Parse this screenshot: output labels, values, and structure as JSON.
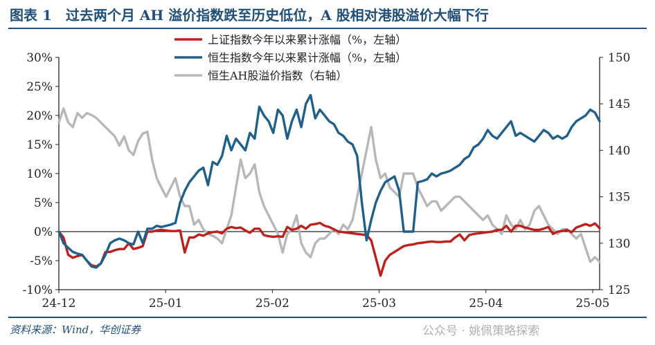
{
  "title": "图表 1　过去两个月 AH 溢价指数跌至历史低位，A 股相对港股溢价大幅下行",
  "source": "资料来源：Wind，华创证券",
  "watermark": "公众号 · 姚佩策略探索",
  "colors": {
    "title": "#1f4e79",
    "shanghai": "#c0201c",
    "hangseng": "#1f5f8b",
    "ah_premium": "#b7b7b7"
  },
  "chart_data": {
    "type": "line",
    "x_ticks": [
      "24-12",
      "25-01",
      "25-02",
      "25-03",
      "25-04",
      "25-05"
    ],
    "x": [
      0,
      1,
      2,
      3,
      4,
      5,
      6,
      7,
      8,
      9,
      10,
      11,
      12,
      13,
      14,
      15,
      16,
      17,
      18,
      19,
      20,
      21,
      22,
      23,
      24,
      25,
      26,
      27,
      28,
      29,
      30,
      31,
      32,
      33,
      34,
      35,
      36,
      37,
      38,
      39,
      40,
      41,
      42,
      43,
      44,
      45,
      46,
      47,
      48,
      49,
      50,
      51,
      52,
      53,
      54,
      55,
      56,
      57,
      58,
      59,
      60,
      61,
      62,
      63,
      64,
      65,
      66,
      67,
      68,
      69,
      70,
      71,
      72,
      73,
      74,
      75,
      76,
      77,
      78,
      79,
      80,
      81,
      82,
      83,
      84,
      85,
      86,
      87,
      88,
      89,
      90,
      91,
      92,
      93,
      94,
      95,
      96,
      97,
      98,
      99,
      100,
      101,
      102,
      103,
      104,
      105,
      106,
      107,
      108,
      109,
      110,
      111,
      112,
      113,
      114,
      115,
      116
    ],
    "left_axis": {
      "ylim": [
        -10,
        30
      ],
      "ticks": [
        "-10%",
        "-5%",
        "0%",
        "5%",
        "10%",
        "15%",
        "20%",
        "25%",
        "30%"
      ]
    },
    "right_axis": {
      "ylim": [
        125,
        150
      ],
      "ticks": [
        "125",
        "130",
        "135",
        "140",
        "145",
        "150"
      ]
    },
    "series": [
      {
        "name": "上证指数今年以来累计涨幅（%，左轴）",
        "axis": "left",
        "values": [
          0.0,
          -1.0,
          -4.0,
          -4.5,
          -4.2,
          -4.0,
          -5.0,
          -5.8,
          -6.0,
          -5.5,
          -3.5,
          -3.5,
          -3.2,
          -3.0,
          -3.0,
          -2.0,
          -3.0,
          -2.8,
          -2.5,
          0.0,
          0.0,
          0.2,
          0.3,
          0.2,
          0.1,
          0.1,
          0.2,
          -3.6,
          -1.0,
          -1.0,
          -0.5,
          -0.7,
          -0.3,
          -0.1,
          0.0,
          -0.3,
          0.5,
          0.8,
          0.6,
          0.7,
          0.2,
          -0.2,
          0.5,
          0.5,
          -0.6,
          -0.8,
          -0.9,
          -0.8,
          -0.9,
          0.8,
          0.3,
          0.5,
          1.0,
          0.5,
          1.2,
          1.3,
          1.5,
          1.0,
          0.8,
          0.4,
          0.0,
          -0.1,
          -0.2,
          -0.3,
          -0.4,
          -0.5,
          -0.6,
          -1.5,
          -4.5,
          -7.6,
          -5.0,
          -4.0,
          -3.5,
          -3.0,
          -2.5,
          -2.3,
          -2.2,
          -2.0,
          -1.9,
          -1.8,
          -1.7,
          -1.8,
          -1.8,
          -1.7,
          -1.7,
          -1.0,
          -0.5,
          -1.5,
          -0.6,
          -0.4,
          -0.3,
          -0.2,
          -0.1,
          0.0,
          0.3,
          0.3,
          1.0,
          0.0,
          1.0,
          1.0,
          0.7,
          0.5,
          0.3,
          0.3,
          0.5,
          0.8,
          -0.4,
          0.0,
          0.1,
          0.3,
          -0.1,
          0.7,
          1.0,
          1.3,
          1.0,
          1.4,
          0.6
        ]
      },
      {
        "name": "恒生指数今年以来累计涨幅（%，左轴）",
        "axis": "left",
        "values": [
          0.0,
          -2.0,
          -2.8,
          -3.5,
          -3.8,
          -4.0,
          -5.0,
          -6.0,
          -6.2,
          -5.5,
          -4.0,
          -2.0,
          -1.5,
          -1.2,
          -1.5,
          -2.0,
          -2.2,
          0.0,
          -2.0,
          0.5,
          0.5,
          1.0,
          0.8,
          1.0,
          1.2,
          1.5,
          5.0,
          7.0,
          8.5,
          9.5,
          10.5,
          11.0,
          8.0,
          12.0,
          11.5,
          13.0,
          16.5,
          14.0,
          16.0,
          15.0,
          14.0,
          17.0,
          16.0,
          21.5,
          20.0,
          19.0,
          17.0,
          21.0,
          20.0,
          16.0,
          19.0,
          21.0,
          18.0,
          22.0,
          23.5,
          19.5,
          21.0,
          20.0,
          19.0,
          18.5,
          17.0,
          16.5,
          15.5,
          15.0,
          13.0,
          5.0,
          -1.5,
          2.0,
          5.0,
          7.0,
          8.5,
          9.0,
          9.5,
          7.0,
          0.0,
          0.0,
          0.0,
          8.5,
          8.7,
          9.0,
          10.0,
          9.5,
          10.0,
          10.2,
          10.5,
          11.0,
          11.5,
          12.5,
          13.0,
          14.5,
          15.0,
          16.0,
          17.5,
          16.5,
          16.0,
          17.0,
          18.0,
          19.0,
          16.5,
          17.0,
          16.5,
          16.0,
          15.5,
          16.5,
          17.5,
          17.0,
          16.0,
          16.5,
          16.0,
          16.5,
          18.0,
          19.0,
          19.5,
          20.0,
          21.0,
          20.5,
          19.0
        ]
      },
      {
        "name": "恒生AH股溢价指数（右轴）",
        "axis": "right",
        "values": [
          143.0,
          144.5,
          143.0,
          142.5,
          144.0,
          143.5,
          144.0,
          143.8,
          143.5,
          143.0,
          142.5,
          142.0,
          141.5,
          140.5,
          141.5,
          140.0,
          139.5,
          141.0,
          141.8,
          142.0,
          139.0,
          137.0,
          136.0,
          135.0,
          136.0,
          137.0,
          135.0,
          134.0,
          134.0,
          132.0,
          132.5,
          131.5,
          131.0,
          130.8,
          130.5,
          130.0,
          131.5,
          133.0,
          136.0,
          139.0,
          137.0,
          137.5,
          138.5,
          135.5,
          134.0,
          133.0,
          132.0,
          131.0,
          129.0,
          131.0,
          131.5,
          133.0,
          130.0,
          129.0,
          128.5,
          130.0,
          130.5,
          130.5,
          131.0,
          131.5,
          131.0,
          132.0,
          131.5,
          132.5,
          135.0,
          137.5,
          140.0,
          142.5,
          139.0,
          137.0,
          137.5,
          136.0,
          135.5,
          135.0,
          137.5,
          137.5,
          137.5,
          136.0,
          135.0,
          134.0,
          134.5,
          134.5,
          133.5,
          134.0,
          134.5,
          135.0,
          135.0,
          134.5,
          134.0,
          133.5,
          133.0,
          132.5,
          133.0,
          132.0,
          131.5,
          131.0,
          133.0,
          132.0,
          131.5,
          132.5,
          131.5,
          132.0,
          133.5,
          134.0,
          133.0,
          132.0,
          131.5,
          131.0,
          131.5,
          131.5,
          131.0,
          130.5,
          131.0,
          129.5,
          128.0,
          128.5,
          128.0
        ]
      }
    ]
  }
}
